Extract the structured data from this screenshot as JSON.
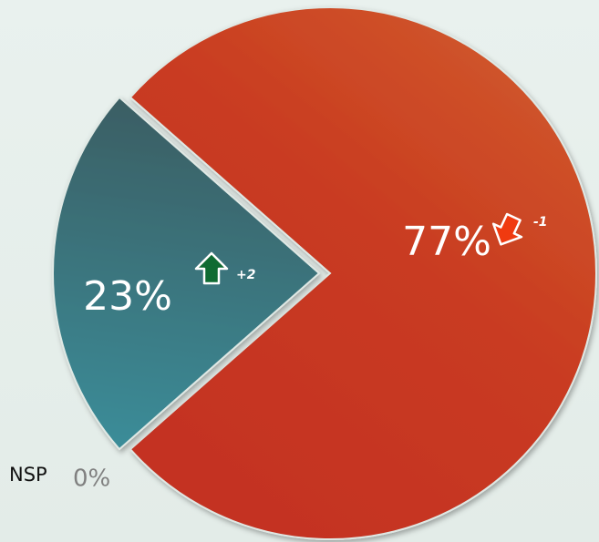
{
  "chart_data": {
    "type": "pie",
    "categories": [
      null,
      null,
      "NSP"
    ],
    "values": [
      77,
      23,
      0
    ],
    "value_labels": [
      "77%",
      "23%",
      "0%"
    ],
    "colors": [
      "#cc3b22",
      "#357a82",
      "#808080"
    ],
    "changes": [
      -1,
      2,
      null
    ],
    "change_labels": [
      "-1",
      "+2",
      null
    ]
  }
}
